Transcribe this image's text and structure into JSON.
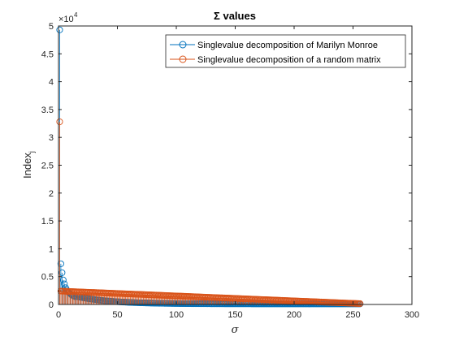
{
  "chart_data": {
    "type": "stem",
    "title": "Σ values",
    "xlabel": "σ",
    "ylabel": "Index",
    "ylabel_subscript": "j",
    "xlim": [
      0,
      300
    ],
    "ylim": [
      0,
      50000
    ],
    "xticks": [
      0,
      50,
      100,
      150,
      200,
      250,
      300
    ],
    "yticks": [
      0,
      5000,
      10000,
      15000,
      20000,
      25000,
      30000,
      35000,
      40000,
      45000,
      50000
    ],
    "ytick_labels": [
      "0",
      "0.5",
      "1",
      "1.5",
      "2",
      "2.5",
      "3",
      "3.5",
      "4",
      "4.5",
      "5"
    ],
    "y_exponent_base": "×10",
    "y_exponent": "4",
    "grid": false,
    "legend_position": "top-right",
    "series": [
      {
        "name": "Singlevalue decomposition of Marilyn Monroe",
        "color": "#0072BD",
        "profile": {
          "count": 256,
          "head": [
            49300,
            7300,
            5700,
            4400,
            3700,
            3000,
            2600,
            2300,
            2100,
            1900,
            1750,
            1600,
            1500,
            1400
          ],
          "decay_scale": 1350,
          "decay_rate": 0.035,
          "tail_end": 100
        }
      },
      {
        "name": "Singlevalue decomposition of a random matrix",
        "color": "#D95319",
        "profile": {
          "count": 256,
          "head": [
            32800
          ],
          "linear_start": 2400,
          "linear_end": 150
        }
      }
    ]
  }
}
